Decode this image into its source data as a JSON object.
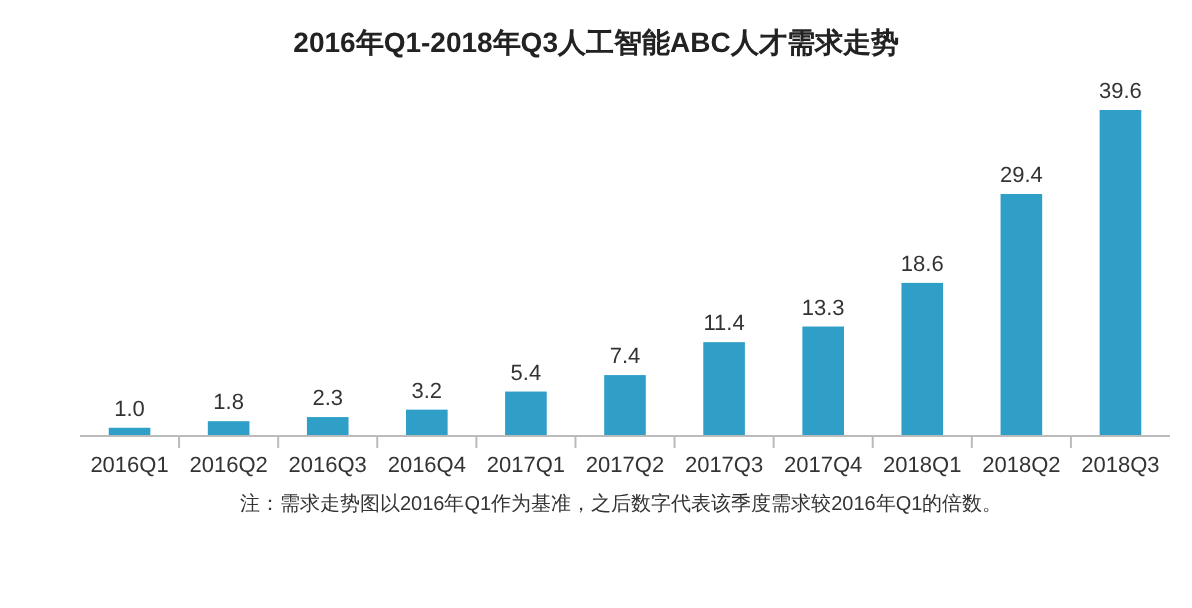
{
  "chart_data": {
    "type": "bar",
    "title": "2016年Q1-2018年Q3人工智能ABC人才需求走势",
    "categories": [
      "2016Q1",
      "2016Q2",
      "2016Q3",
      "2016Q4",
      "2017Q1",
      "2017Q2",
      "2017Q3",
      "2017Q4",
      "2018Q1",
      "2018Q2",
      "2018Q3"
    ],
    "values": [
      1.0,
      1.8,
      2.3,
      3.2,
      5.4,
      7.4,
      11.4,
      13.3,
      18.6,
      29.4,
      39.6
    ],
    "value_labels": [
      "1.0",
      "1.8",
      "2.3",
      "3.2",
      "5.4",
      "7.4",
      "11.4",
      "13.3",
      "18.6",
      "29.4",
      "39.6"
    ],
    "color": "#2f9fc8",
    "annotations": [
      "注：需求走势图以2016年Q1作为基准，之后数字代表该季度需求较2016年Q1的倍数。"
    ]
  }
}
